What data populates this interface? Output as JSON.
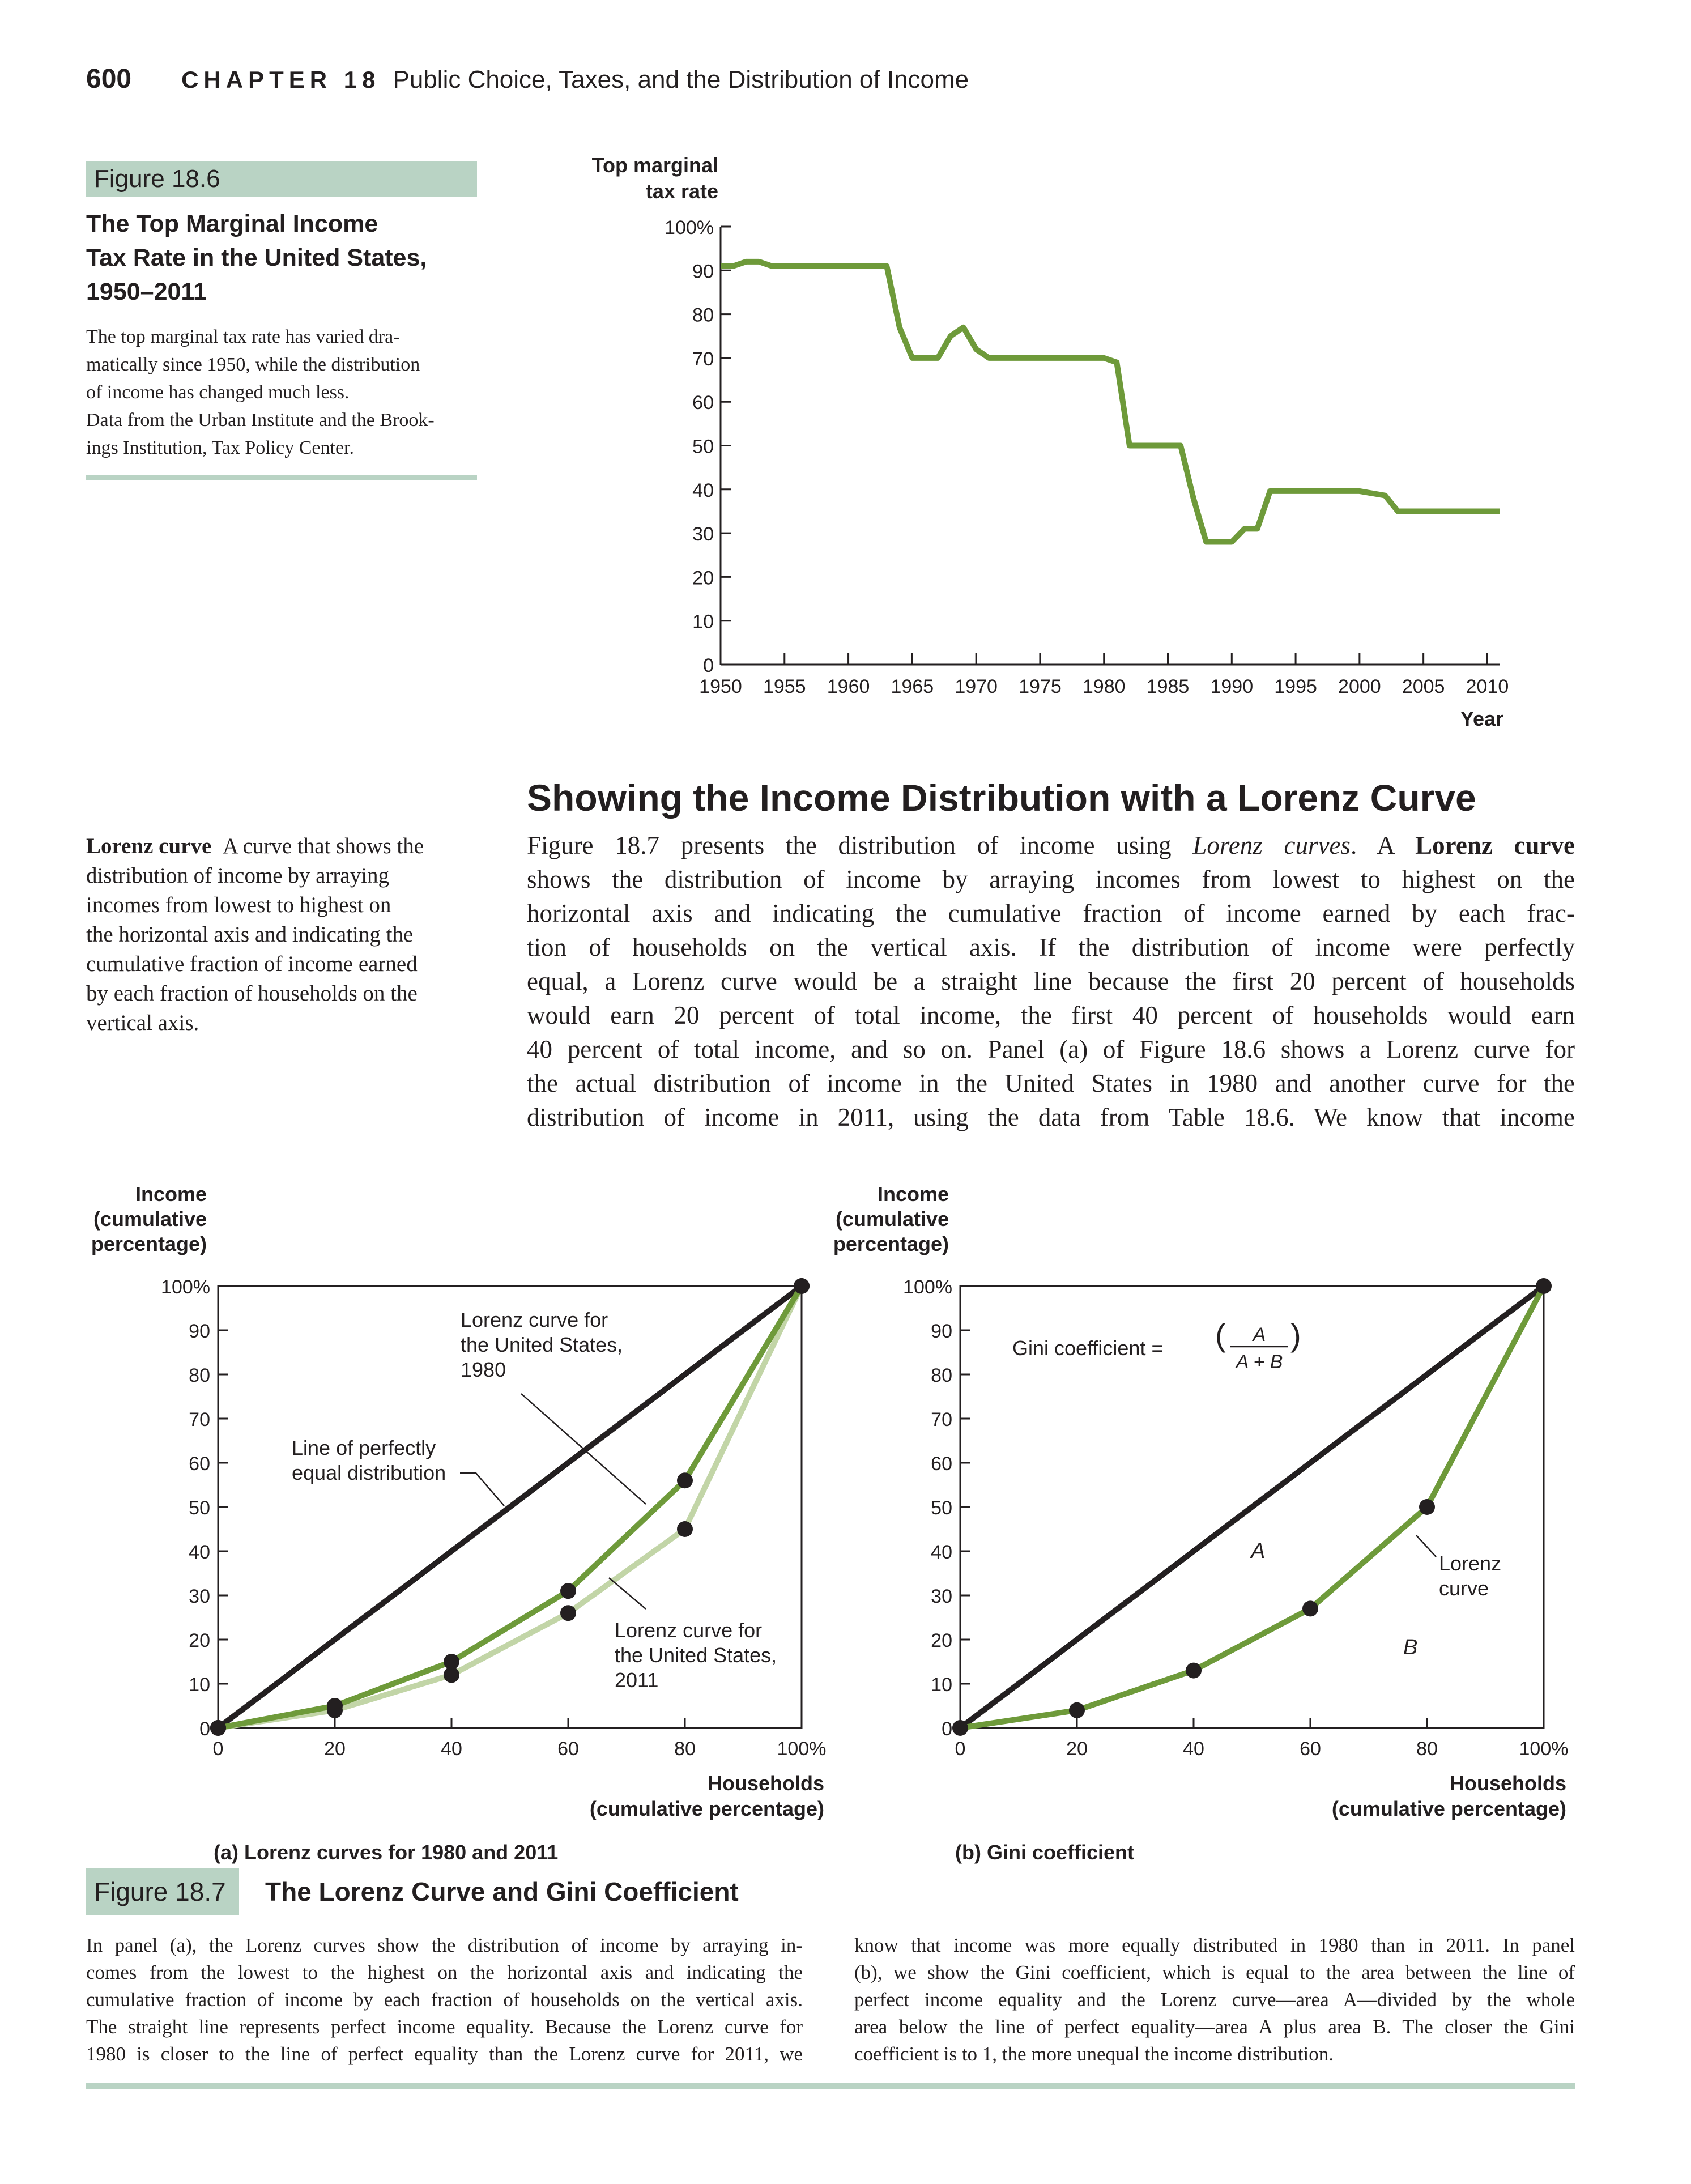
{
  "header": {
    "page_number": "600",
    "chapter_label": "CHAPTER 18",
    "chapter_title": "Public Choice, Taxes, and the Distribution of Income"
  },
  "figure_18_6": {
    "tag": "Figure 18.6",
    "title_lines": [
      "The Top Marginal Income",
      "Tax Rate in the United States,",
      "1950–2011"
    ],
    "caption_lines": [
      "The top marginal tax rate has varied dra-",
      "matically since 1950, while the distribution",
      "of income has changed much less.",
      "Data from the Urban Institute and the Brook-",
      "ings Institution, Tax Policy Center."
    ]
  },
  "section": {
    "heading": "Showing the Income Distribution with a Lorenz Curve",
    "glossary_term": "Lorenz curve",
    "glossary_definition": "A curve that shows the distribution of income by arraying incomes from lowest to highest on the horizontal axis and indicating the cumulative fraction of income earned by each fraction of households on the vertical axis.",
    "glossary_lines": [
      "distribution of income by arraying",
      "incomes from lowest to highest on",
      "the horizontal axis and indicating the",
      "cumulative fraction of income earned",
      "by each fraction of households on the",
      "vertical axis."
    ],
    "glossary_first_line_rest": "A curve that shows the",
    "body_lines": [
      [
        "Figure 18.7 presents the distribution of income using ",
        "Lorenz curves",
        ". A ",
        "Lorenz curve",
        ""
      ],
      "shows the distribution of income by arraying incomes from lowest to highest on the",
      "horizontal axis and indicating the cumulative fraction of income earned by each frac-",
      "tion of households on the vertical axis. If the distribution of income were perfectly",
      "equal, a Lorenz curve would be a straight line because the first 20 percent of households",
      "would earn 20 percent of total income, the first 40 percent of households would earn",
      "40 percent of total income, and so on. Panel (a) of Figure 18.6 shows a Lorenz curve for",
      "the actual distribution of income in the United States in 1980 and another curve for the",
      "distribution of income in 2011, using the data from Table 18.6. We know that income"
    ]
  },
  "figure_18_7": {
    "tag": "Figure 18.7",
    "title": "The Lorenz Curve and Gini Coefficient",
    "caption_left_lines": [
      "In panel (a), the Lorenz curves show the distribution of income by arraying in-",
      "comes from the lowest to the highest on the horizontal axis and indicating the",
      "cumulative fraction of income by each fraction of households on the vertical axis.",
      "The straight line represents perfect income equality. Because the Lorenz curve for",
      "1980 is closer to the line of perfect equality than the Lorenz curve for 2011, we"
    ],
    "caption_right_lines": [
      "know that income was more equally distributed in 1980 than in 2011. In panel",
      "(b), we show the Gini coefficient, which is equal to the area between the line of",
      "perfect income equality and the Lorenz curve—area A—divided by the whole",
      "area below the line of perfect equality—area A plus area B. The closer the Gini",
      "coefficient is to 1, the more unequal the income distribution."
    ]
  },
  "colors": {
    "green": "#6e9a3a",
    "light_green": "#c2d5a7",
    "black": "#231f20",
    "tint": "#b9d3c4"
  },
  "chart_data": [
    {
      "type": "line",
      "id": "tax-rate",
      "ylabel": "Top marginal tax rate",
      "xlabel": "Year",
      "xlim": [
        1950,
        2011
      ],
      "ylim": [
        0,
        100
      ],
      "x_ticks": [
        1950,
        1955,
        1960,
        1965,
        1970,
        1975,
        1980,
        1985,
        1990,
        1995,
        2000,
        2005,
        2010
      ],
      "y_tick_labels": [
        "0",
        "10",
        "20",
        "30",
        "40",
        "50",
        "60",
        "70",
        "80",
        "90",
        "100%"
      ],
      "series": [
        {
          "x": [
            1950,
            1951,
            1952,
            1953,
            1954,
            1963,
            1964,
            1965,
            1967,
            1968,
            1969,
            1970,
            1971,
            1980,
            1981,
            1982,
            1986,
            1987,
            1988,
            1990,
            1991,
            1992,
            1993,
            2000,
            2001,
            2002,
            2003,
            2011
          ],
          "y": [
            91,
            91,
            92,
            92,
            91,
            91,
            77,
            70,
            70,
            75,
            77,
            72,
            70,
            70,
            69,
            50,
            50,
            38,
            28,
            28,
            31,
            31,
            39.6,
            39.6,
            39.1,
            38.6,
            35,
            35
          ]
        }
      ]
    },
    {
      "type": "line",
      "id": "lorenz-a",
      "ylabel": "Income (cumulative percentage)",
      "xlabel": "Households (cumulative percentage)",
      "subtitle": "(a) Lorenz curves for 1980 and 2011",
      "xlim": [
        0,
        100
      ],
      "ylim": [
        0,
        100
      ],
      "x_tick_labels": [
        "0",
        "20",
        "40",
        "60",
        "80",
        "100%"
      ],
      "y_tick_labels": [
        "0",
        "10",
        "20",
        "30",
        "40",
        "50",
        "60",
        "70",
        "80",
        "90",
        "100%"
      ],
      "series": [
        {
          "x": [
            0,
            100
          ],
          "y": [
            0,
            100
          ],
          "label": "Line of perfectly equal distribution"
        },
        {
          "x": [
            0,
            20,
            40,
            60,
            80,
            100
          ],
          "y": [
            0,
            5,
            15,
            31,
            56,
            100
          ],
          "label": "Lorenz curve for the United States, 1980"
        },
        {
          "x": [
            0,
            20,
            40,
            60,
            80,
            100
          ],
          "y": [
            0,
            4,
            12,
            26,
            45,
            100
          ],
          "label": "Lorenz curve for the United States, 2011"
        }
      ],
      "annotations": {
        "equal_line_lines": [
          "Line of perfectly",
          "equal distribution"
        ],
        "curve_1980_lines": [
          "Lorenz curve for",
          "the United States,",
          "1980"
        ],
        "curve_2011_lines": [
          "Lorenz curve for",
          "the United States,",
          "2011"
        ]
      }
    },
    {
      "type": "line",
      "id": "lorenz-b",
      "ylabel": "Income (cumulative percentage)",
      "xlabel": "Households (cumulative percentage)",
      "subtitle": "(b) Gini coefficient",
      "xlim": [
        0,
        100
      ],
      "ylim": [
        0,
        100
      ],
      "x_tick_labels": [
        "0",
        "20",
        "40",
        "60",
        "80",
        "100%"
      ],
      "y_tick_labels": [
        "0",
        "10",
        "20",
        "30",
        "40",
        "50",
        "60",
        "70",
        "80",
        "90",
        "100%"
      ],
      "series": [
        {
          "x": [
            0,
            100
          ],
          "y": [
            0,
            100
          ]
        },
        {
          "x": [
            0,
            20,
            40,
            60,
            80,
            100
          ],
          "y": [
            0,
            4,
            13,
            27,
            50,
            100
          ],
          "label": "Lorenz curve"
        }
      ],
      "annotations": {
        "gini_label": "Gini coefficient =",
        "gini_numerator": "A",
        "gini_denominator": "A + B",
        "area_a": "A",
        "area_b": "B",
        "curve_lines": [
          "Lorenz",
          "curve"
        ]
      }
    }
  ]
}
